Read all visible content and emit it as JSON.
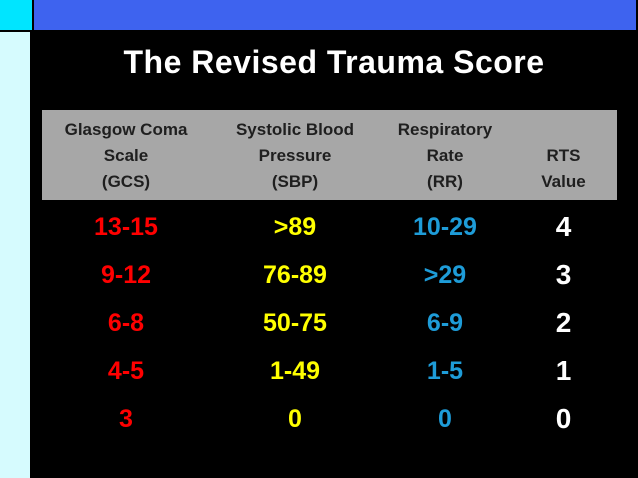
{
  "slide": {
    "title": "The Revised Trauma Score"
  },
  "table": {
    "headers": {
      "gcs": {
        "line1": "Glasgow Coma",
        "line2": "Scale",
        "line3": "(GCS)"
      },
      "sbp": {
        "line1": "Systolic Blood",
        "line2": "Pressure",
        "line3": "(SBP)"
      },
      "rr": {
        "line1": "Respiratory",
        "line2": "Rate",
        "line3": "(RR)"
      },
      "rts": {
        "line1": "RTS",
        "line2": "Value"
      }
    },
    "rows": [
      {
        "gcs": "13-15",
        "sbp": ">89",
        "rr": "10-29",
        "rts": "4"
      },
      {
        "gcs": "9-12",
        "sbp": "76-89",
        "rr": ">29",
        "rts": "3"
      },
      {
        "gcs": "6-8",
        "sbp": "50-75",
        "rr": "6-9",
        "rts": "2"
      },
      {
        "gcs": "4-5",
        "sbp": "1-49",
        "rr": "1-5",
        "rts": "1"
      },
      {
        "gcs": "3",
        "sbp": "0",
        "rr": "0",
        "rts": "0"
      }
    ]
  },
  "colors": {
    "accent-cyan": "#00E5FF",
    "accent-blue": "#3E63EF",
    "accent-pale": "#D6FBFE",
    "slide-bg": "#000000",
    "header-bg": "#A7A7A7",
    "header-text": "#1F1F1F",
    "gcs-text": "#FF0000",
    "sbp-text": "#FFFF00",
    "rr-text": "#1E9CD8",
    "rts-text": "#FFFFFF"
  }
}
